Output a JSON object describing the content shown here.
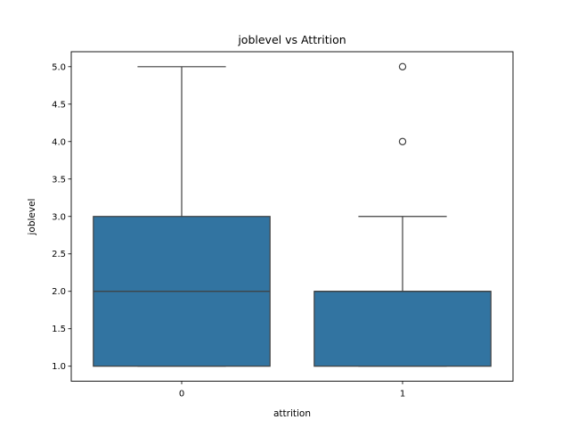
{
  "chart_data": {
    "type": "box",
    "title": "joblevel vs Attrition",
    "xlabel": "attrition",
    "ylabel": "joblevel",
    "categories": [
      "0",
      "1"
    ],
    "boxes": [
      {
        "category": "0",
        "whisker_low": 1.0,
        "q1": 1.0,
        "median": 2.0,
        "q3": 3.0,
        "whisker_high": 5.0,
        "outliers": []
      },
      {
        "category": "1",
        "whisker_low": 1.0,
        "q1": 1.0,
        "median": 2.0,
        "q3": 2.0,
        "whisker_high": 3.0,
        "outliers": [
          4.0,
          5.0
        ]
      }
    ],
    "ylim": [
      0.8,
      5.2
    ],
    "yticks": [
      1.0,
      1.5,
      2.0,
      2.5,
      3.0,
      3.5,
      4.0,
      4.5,
      5.0
    ],
    "grid": false,
    "box_color": "#3274a1",
    "line_color": "#3f3f3f"
  }
}
